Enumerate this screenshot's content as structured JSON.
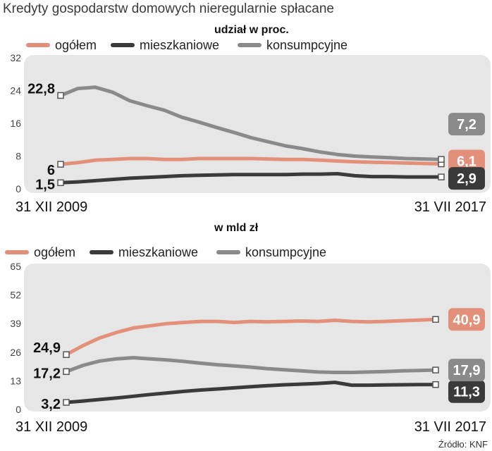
{
  "title": "Kredyty gospodarstw domowych nieregularnie spłacane",
  "source": "Źródło: KNF",
  "colors": {
    "total": "#e3907b",
    "mortgage": "#3a3a3a",
    "consumer": "#8a8a8a",
    "panel": "#e6e6e6"
  },
  "chart_data": [
    {
      "type": "line",
      "title": "udział w proc.",
      "x_start_label": "31 XII 2009",
      "x_end_label": "31 VII 2017",
      "ylim": [
        0,
        32
      ],
      "yticks": [
        0,
        8,
        16,
        24,
        32
      ],
      "series": [
        {
          "name": "ogółem",
          "color": "#e3907b",
          "start_label": "6",
          "end_label": "6,1",
          "values": [
            6.0,
            6.4,
            7.0,
            7.2,
            7.4,
            7.4,
            7.2,
            7.2,
            7.4,
            7.4,
            7.4,
            7.4,
            7.3,
            7.2,
            7.2,
            7.0,
            6.8,
            6.6,
            6.5,
            6.4,
            6.3,
            6.2,
            6.1
          ]
        },
        {
          "name": "mieszkaniowe",
          "color": "#3a3a3a",
          "start_label": "1,5",
          "end_label": "2,9",
          "values": [
            1.5,
            1.7,
            2.0,
            2.3,
            2.6,
            2.8,
            3.0,
            3.2,
            3.3,
            3.4,
            3.5,
            3.5,
            3.5,
            3.5,
            3.6,
            3.6,
            3.7,
            3.2,
            3.0,
            3.0,
            2.9,
            2.9,
            2.9
          ]
        },
        {
          "name": "konsumpcyjne",
          "color": "#8a8a8a",
          "start_label": "22,8",
          "end_label": "7,2",
          "values": [
            22.8,
            24.5,
            24.8,
            23.6,
            21.5,
            20.3,
            19.2,
            17.5,
            16.3,
            15.0,
            13.8,
            12.5,
            11.5,
            10.5,
            9.8,
            9.0,
            8.4,
            8.0,
            7.8,
            7.6,
            7.4,
            7.3,
            7.2
          ]
        }
      ]
    },
    {
      "type": "line",
      "title": "w mld zł",
      "x_start_label": "31 XII 2009",
      "x_end_label": "31 VII 2017",
      "ylim": [
        0,
        65
      ],
      "yticks": [
        0,
        13,
        26,
        39,
        52,
        65
      ],
      "series": [
        {
          "name": "ogółem",
          "color": "#e3907b",
          "start_label": "24,9",
          "end_label": "40,9",
          "values": [
            24.9,
            29.0,
            32.5,
            35.0,
            37.0,
            38.0,
            39.0,
            39.5,
            40.0,
            40.0,
            39.5,
            40.0,
            39.8,
            40.0,
            40.2,
            40.0,
            40.5,
            40.0,
            39.8,
            40.0,
            40.3,
            40.6,
            40.9
          ]
        },
        {
          "name": "mieszkaniowe",
          "color": "#3a3a3a",
          "start_label": "3,2",
          "end_label": "11,3",
          "values": [
            3.2,
            3.8,
            4.5,
            5.2,
            6.0,
            6.8,
            7.5,
            8.2,
            8.8,
            9.3,
            9.8,
            10.3,
            10.8,
            11.2,
            11.5,
            11.8,
            12.3,
            11.0,
            11.0,
            11.1,
            11.2,
            11.3,
            11.3
          ]
        },
        {
          "name": "konsumpcyjne",
          "color": "#8a8a8a",
          "start_label": "17,2",
          "end_label": "17,9",
          "values": [
            17.2,
            20.0,
            22.0,
            23.0,
            23.5,
            23.0,
            22.5,
            21.8,
            21.0,
            20.3,
            19.8,
            19.2,
            18.5,
            18.0,
            17.5,
            17.0,
            16.8,
            16.8,
            17.0,
            17.2,
            17.5,
            17.7,
            17.9
          ]
        }
      ]
    }
  ]
}
